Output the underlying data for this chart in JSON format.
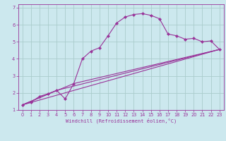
{
  "bg_color": "#cce8ee",
  "grid_color": "#aacccc",
  "line_color": "#993399",
  "spine_color": "#993399",
  "xlabel_color": "#993399",
  "tick_color": "#993399",
  "marker": "D",
  "marker_size": 2.2,
  "line_width": 0.8,
  "xlabel": "Windchill (Refroidissement éolien,°C)",
  "xlabel_fontsize": 5.0,
  "tick_fontsize": 4.8,
  "xlim": [
    -0.5,
    23.5
  ],
  "ylim": [
    1,
    7.2
  ],
  "xticks": [
    0,
    1,
    2,
    3,
    4,
    5,
    6,
    7,
    8,
    9,
    10,
    11,
    12,
    13,
    14,
    15,
    16,
    17,
    18,
    19,
    20,
    21,
    22,
    23
  ],
  "yticks": [
    1,
    2,
    3,
    4,
    5,
    6,
    7
  ],
  "series1_x": [
    0,
    1,
    2,
    3,
    4,
    5,
    6,
    7,
    8,
    9,
    10,
    11,
    12,
    13,
    14,
    15,
    16,
    17,
    18,
    19,
    20,
    21,
    22,
    23
  ],
  "series1_y": [
    1.3,
    1.45,
    1.8,
    1.95,
    2.15,
    1.65,
    2.55,
    4.0,
    4.45,
    4.65,
    5.35,
    6.1,
    6.45,
    6.6,
    6.65,
    6.55,
    6.35,
    5.45,
    5.35,
    5.15,
    5.2,
    5.0,
    5.05,
    4.55
  ],
  "series2_x": [
    0,
    23
  ],
  "series2_y": [
    1.3,
    4.55
  ],
  "series3_x": [
    0,
    4,
    23
  ],
  "series3_y": [
    1.3,
    2.15,
    4.55
  ],
  "series4_x": [
    0,
    6,
    23
  ],
  "series4_y": [
    1.3,
    2.55,
    4.55
  ]
}
